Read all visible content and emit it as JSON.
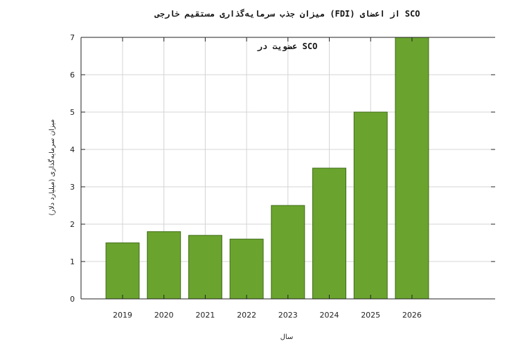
{
  "chart_data": {
    "type": "bar",
    "title": "SCO از اعضای (FDI) میزان جذب سرمایه‌گذاری مستقیم خارجی",
    "legend_text": "SCO عضویت در",
    "xlabel": "سال",
    "ylabel": "میزان سرمایه‌گذاری (میلیارد دلار)",
    "categories": [
      "2019",
      "2020",
      "2021",
      "2022",
      "2023",
      "2024",
      "2025",
      "2026"
    ],
    "values": [
      1.5,
      1.8,
      1.7,
      1.6,
      2.5,
      3.5,
      5.0,
      7.0
    ],
    "ylim": [
      0,
      7
    ],
    "yticks": [
      0,
      1,
      2,
      3,
      4,
      5,
      6,
      7
    ],
    "grid": true,
    "legend_position": "top-center",
    "colors": {
      "bar_fill": "#6aa42e",
      "bar_stroke": "#3f6a17",
      "grid": "#d4d4d4",
      "axis": "#222222"
    }
  }
}
